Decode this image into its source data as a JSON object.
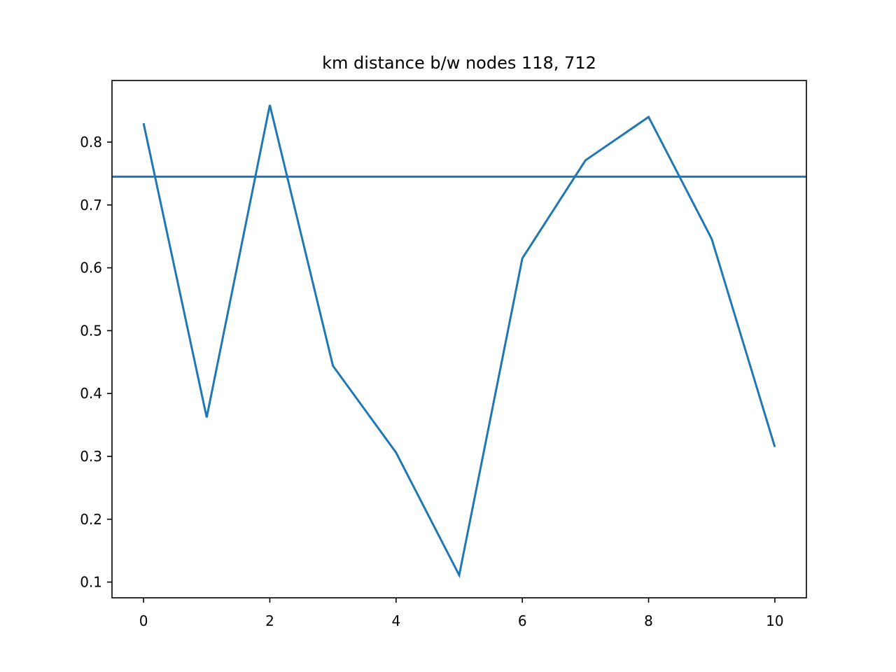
{
  "chart_data": {
    "type": "line",
    "title": "km distance b/w nodes 118, 712",
    "xlabel": "",
    "ylabel": "",
    "xlim": [
      -0.5,
      10.5
    ],
    "ylim": [
      0.075,
      0.898
    ],
    "xticks": [
      0,
      2,
      4,
      6,
      8,
      10
    ],
    "xtick_labels": [
      "0",
      "2",
      "4",
      "6",
      "8",
      "10"
    ],
    "yticks": [
      0.1,
      0.2,
      0.3,
      0.4,
      0.5,
      0.6,
      0.7,
      0.8
    ],
    "ytick_labels": [
      "0.1",
      "0.2",
      "0.3",
      "0.4",
      "0.5",
      "0.6",
      "0.7",
      "0.8"
    ],
    "grid": false,
    "series": [
      {
        "color": "#1f77b4",
        "x": [
          0,
          1,
          2,
          3,
          4,
          5,
          6,
          7,
          8,
          9,
          10
        ],
        "values": [
          0.83,
          0.362,
          0.859,
          0.444,
          0.306,
          0.111,
          0.615,
          0.771,
          0.84,
          0.646,
          0.315
        ]
      }
    ],
    "hlines": [
      {
        "y": 0.745,
        "color": "#1f77b4"
      }
    ]
  }
}
